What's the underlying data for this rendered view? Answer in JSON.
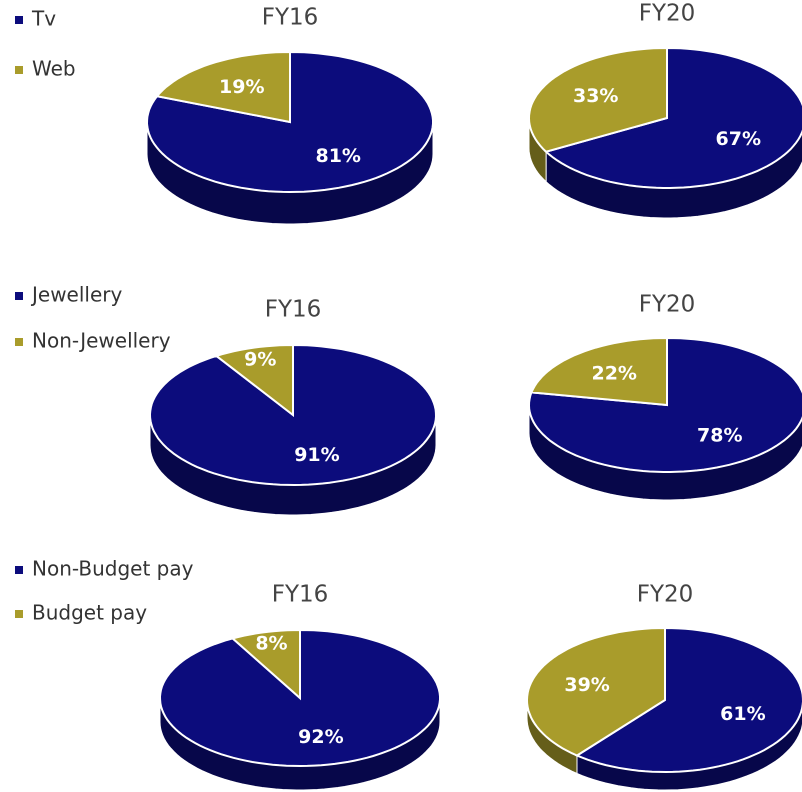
{
  "chart_data": [
    {
      "type": "pie",
      "categories": [
        "Tv",
        "Web"
      ],
      "colors": [
        "#0c0c7c",
        "#a99c2b"
      ],
      "pies": [
        {
          "title": "FY16",
          "values": [
            81,
            19
          ],
          "value_labels": [
            "81%",
            "19%"
          ]
        },
        {
          "title": "FY20",
          "values": [
            67,
            33
          ],
          "value_labels": [
            "67%",
            "33%"
          ]
        }
      ]
    },
    {
      "type": "pie",
      "categories": [
        "Jewellery",
        "Non-Jewellery"
      ],
      "colors": [
        "#0c0c7c",
        "#a99c2b"
      ],
      "pies": [
        {
          "title": "FY16",
          "values": [
            91,
            9
          ],
          "value_labels": [
            "91%",
            "9%"
          ]
        },
        {
          "title": "FY20",
          "values": [
            78,
            22
          ],
          "value_labels": [
            "78%",
            "22%"
          ]
        }
      ]
    },
    {
      "type": "pie",
      "categories": [
        "Non-Budget pay",
        "Budget pay"
      ],
      "colors": [
        "#0c0c7c",
        "#a99c2b"
      ],
      "pies": [
        {
          "title": "FY16",
          "values": [
            92,
            8
          ],
          "value_labels": [
            "92%",
            "8%"
          ]
        },
        {
          "title": "FY20",
          "values": [
            61,
            39
          ],
          "value_labels": [
            "61%",
            "39%"
          ]
        }
      ]
    }
  ]
}
